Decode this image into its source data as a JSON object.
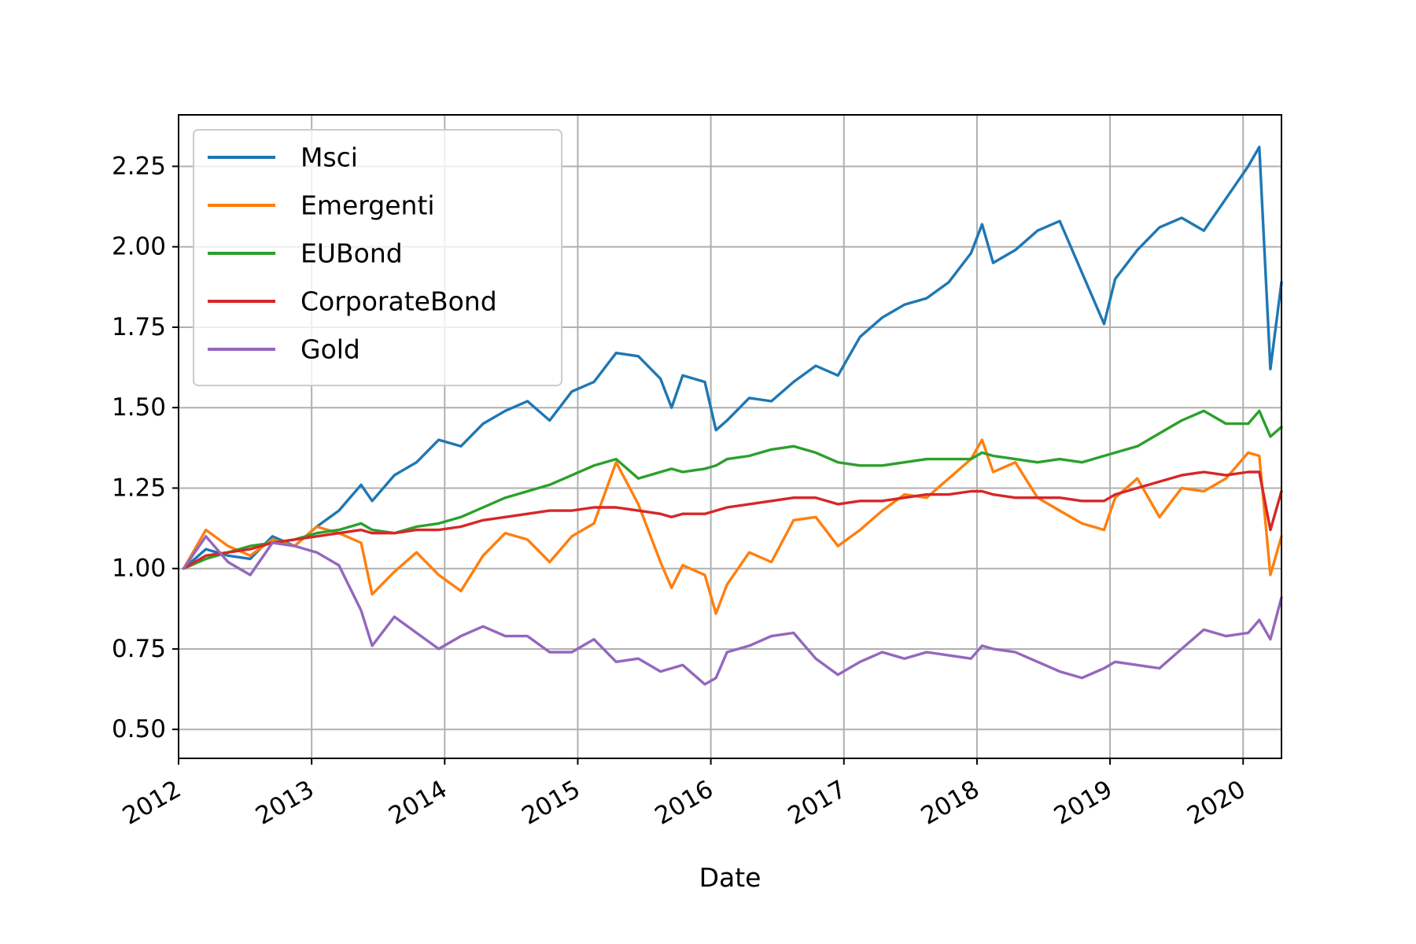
{
  "chart_data": {
    "type": "line",
    "title": "",
    "xlabel": "Date",
    "ylabel": "",
    "x_ticks": [
      "2012",
      "2013",
      "2014",
      "2015",
      "2016",
      "2017",
      "2018",
      "2019",
      "2020"
    ],
    "y_ticks": [
      "0.50",
      "0.75",
      "1.00",
      "1.25",
      "1.50",
      "1.75",
      "2.00",
      "2.25"
    ],
    "xlim": [
      "2012-01-01",
      "2020-04-15"
    ],
    "ylim": [
      0.41,
      2.41
    ],
    "grid": true,
    "legend_position": "upper-left",
    "x": [
      "2012-01",
      "2012-03",
      "2012-05",
      "2012-07",
      "2012-09",
      "2012-11",
      "2013-01",
      "2013-03",
      "2013-05",
      "2013-06",
      "2013-08",
      "2013-10",
      "2013-12",
      "2014-02",
      "2014-04",
      "2014-06",
      "2014-08",
      "2014-10",
      "2014-12",
      "2015-02",
      "2015-04",
      "2015-06",
      "2015-08",
      "2015-09",
      "2015-10",
      "2015-12",
      "2016-01",
      "2016-02",
      "2016-04",
      "2016-06",
      "2016-08",
      "2016-10",
      "2016-12",
      "2017-02",
      "2017-04",
      "2017-06",
      "2017-08",
      "2017-10",
      "2017-12",
      "2018-01",
      "2018-02",
      "2018-04",
      "2018-06",
      "2018-08",
      "2018-10",
      "2018-12",
      "2019-01",
      "2019-03",
      "2019-05",
      "2019-07",
      "2019-09",
      "2019-11",
      "2020-01",
      "2020-02",
      "2020-03",
      "2020-04"
    ],
    "series": [
      {
        "name": "Msci",
        "color": "#1f77b4",
        "values": [
          1.0,
          1.06,
          1.04,
          1.03,
          1.1,
          1.07,
          1.13,
          1.18,
          1.26,
          1.21,
          1.29,
          1.33,
          1.4,
          1.38,
          1.45,
          1.49,
          1.52,
          1.46,
          1.55,
          1.58,
          1.67,
          1.66,
          1.59,
          1.5,
          1.6,
          1.58,
          1.43,
          1.46,
          1.53,
          1.52,
          1.58,
          1.63,
          1.6,
          1.72,
          1.78,
          1.82,
          1.84,
          1.89,
          1.98,
          2.07,
          1.95,
          1.99,
          2.05,
          2.08,
          1.92,
          1.76,
          1.9,
          1.99,
          2.06,
          2.09,
          2.05,
          2.15,
          2.25,
          2.31,
          1.62,
          1.89
        ]
      },
      {
        "name": "Emergenti",
        "color": "#ff7f0e",
        "values": [
          1.0,
          1.12,
          1.07,
          1.04,
          1.09,
          1.07,
          1.13,
          1.11,
          1.08,
          0.92,
          0.99,
          1.05,
          0.98,
          0.93,
          1.04,
          1.11,
          1.09,
          1.02,
          1.1,
          1.14,
          1.33,
          1.2,
          1.02,
          0.94,
          1.01,
          0.98,
          0.86,
          0.95,
          1.05,
          1.02,
          1.15,
          1.16,
          1.07,
          1.12,
          1.18,
          1.23,
          1.22,
          1.28,
          1.34,
          1.4,
          1.3,
          1.33,
          1.22,
          1.18,
          1.14,
          1.12,
          1.22,
          1.28,
          1.16,
          1.25,
          1.24,
          1.28,
          1.36,
          1.35,
          0.98,
          1.1
        ]
      },
      {
        "name": "EUBond",
        "color": "#2ca02c",
        "values": [
          1.0,
          1.03,
          1.05,
          1.07,
          1.08,
          1.09,
          1.11,
          1.12,
          1.14,
          1.12,
          1.11,
          1.13,
          1.14,
          1.16,
          1.19,
          1.22,
          1.24,
          1.26,
          1.29,
          1.32,
          1.34,
          1.28,
          1.3,
          1.31,
          1.3,
          1.31,
          1.32,
          1.34,
          1.35,
          1.37,
          1.38,
          1.36,
          1.33,
          1.32,
          1.32,
          1.33,
          1.34,
          1.34,
          1.34,
          1.36,
          1.35,
          1.34,
          1.33,
          1.34,
          1.33,
          1.35,
          1.36,
          1.38,
          1.42,
          1.46,
          1.49,
          1.45,
          1.45,
          1.49,
          1.41,
          1.44
        ]
      },
      {
        "name": "CorporateBond",
        "color": "#d62728",
        "values": [
          1.0,
          1.04,
          1.05,
          1.06,
          1.08,
          1.09,
          1.1,
          1.11,
          1.12,
          1.11,
          1.11,
          1.12,
          1.12,
          1.13,
          1.15,
          1.16,
          1.17,
          1.18,
          1.18,
          1.19,
          1.19,
          1.18,
          1.17,
          1.16,
          1.17,
          1.17,
          1.18,
          1.19,
          1.2,
          1.21,
          1.22,
          1.22,
          1.2,
          1.21,
          1.21,
          1.22,
          1.23,
          1.23,
          1.24,
          1.24,
          1.23,
          1.22,
          1.22,
          1.22,
          1.21,
          1.21,
          1.23,
          1.25,
          1.27,
          1.29,
          1.3,
          1.29,
          1.3,
          1.3,
          1.12,
          1.24
        ]
      },
      {
        "name": "Gold",
        "color": "#9467bd",
        "values": [
          1.0,
          1.1,
          1.02,
          0.98,
          1.08,
          1.07,
          1.05,
          1.01,
          0.87,
          0.76,
          0.85,
          0.8,
          0.75,
          0.79,
          0.82,
          0.79,
          0.79,
          0.74,
          0.74,
          0.78,
          0.71,
          0.72,
          0.68,
          0.69,
          0.7,
          0.64,
          0.66,
          0.74,
          0.76,
          0.79,
          0.8,
          0.72,
          0.67,
          0.71,
          0.74,
          0.72,
          0.74,
          0.73,
          0.72,
          0.76,
          0.75,
          0.74,
          0.71,
          0.68,
          0.66,
          0.69,
          0.71,
          0.7,
          0.69,
          0.75,
          0.81,
          0.79,
          0.8,
          0.84,
          0.78,
          0.91
        ]
      }
    ]
  }
}
